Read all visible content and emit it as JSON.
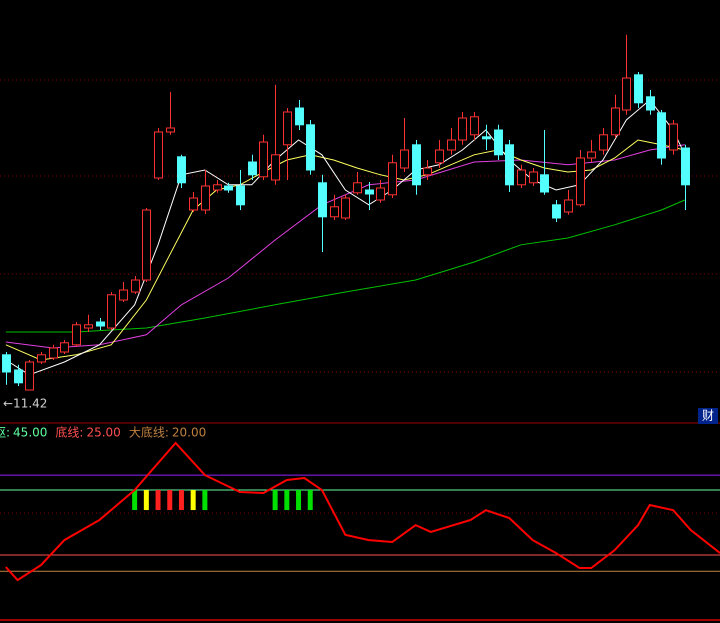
{
  "chart_data": [
    {
      "type": "candlestick",
      "xlim": [
        -0.5,
        61
      ],
      "ylim": [
        10.67,
        21.17
      ],
      "up_color": "#ff3232",
      "down_color": "#54ffff",
      "ohlc": [
        [
          12.3,
          12.37,
          11.55,
          11.87
        ],
        [
          11.92,
          12.05,
          11.52,
          11.6
        ],
        [
          11.42,
          12.17,
          11.42,
          12.12
        ],
        [
          12.12,
          12.37,
          12.07,
          12.3
        ],
        [
          12.22,
          12.55,
          12.17,
          12.47
        ],
        [
          12.37,
          12.67,
          12.32,
          12.6
        ],
        [
          12.55,
          13.12,
          12.5,
          13.05
        ],
        [
          12.97,
          13.3,
          12.87,
          13.05
        ],
        [
          13.12,
          13.22,
          12.92,
          13.02
        ],
        [
          12.97,
          13.87,
          12.92,
          13.8
        ],
        [
          13.67,
          14.12,
          13.62,
          13.92
        ],
        [
          13.87,
          14.27,
          13.82,
          14.17
        ],
        [
          14.17,
          15.97,
          14.12,
          15.92
        ],
        [
          16.72,
          17.97,
          16.67,
          17.87
        ],
        [
          17.87,
          18.87,
          17.8,
          17.97
        ],
        [
          17.25,
          17.3,
          16.47,
          16.6
        ],
        [
          15.92,
          16.37,
          15.87,
          16.22
        ],
        [
          15.92,
          16.92,
          15.82,
          16.52
        ],
        [
          16.42,
          16.67,
          16.35,
          16.55
        ],
        [
          16.52,
          16.6,
          16.35,
          16.42
        ],
        [
          16.52,
          16.92,
          15.92,
          16.05
        ],
        [
          17.12,
          17.3,
          16.67,
          16.8
        ],
        [
          16.75,
          17.8,
          16.67,
          17.62
        ],
        [
          16.67,
          19.05,
          16.55,
          17.3
        ],
        [
          17.55,
          18.47,
          16.67,
          18.37
        ],
        [
          18.47,
          18.67,
          17.92,
          18.05
        ],
        [
          18.05,
          18.17,
          16.8,
          16.92
        ],
        [
          16.6,
          16.8,
          14.87,
          15.75
        ],
        [
          15.75,
          16.3,
          15.67,
          16.0
        ],
        [
          15.72,
          16.3,
          15.67,
          16.22
        ],
        [
          16.35,
          16.87,
          16.3,
          16.6
        ],
        [
          16.42,
          16.62,
          15.92,
          16.32
        ],
        [
          16.17,
          16.67,
          16.1,
          16.47
        ],
        [
          16.3,
          17.3,
          16.22,
          17.1
        ],
        [
          16.97,
          18.22,
          16.87,
          17.42
        ],
        [
          17.55,
          17.67,
          16.3,
          16.55
        ],
        [
          16.8,
          17.17,
          16.67,
          16.97
        ],
        [
          17.1,
          17.67,
          16.97,
          17.42
        ],
        [
          17.42,
          17.97,
          17.3,
          17.67
        ],
        [
          17.67,
          18.37,
          17.55,
          18.22
        ],
        [
          17.8,
          18.37,
          17.67,
          18.25
        ],
        [
          17.75,
          18.05,
          17.42,
          17.7
        ],
        [
          17.92,
          18.05,
          17.17,
          17.3
        ],
        [
          17.55,
          17.67,
          16.37,
          16.55
        ],
        [
          16.55,
          17.05,
          16.47,
          16.92
        ],
        [
          16.6,
          16.97,
          16.52,
          16.87
        ],
        [
          16.8,
          17.92,
          16.3,
          16.37
        ],
        [
          16.05,
          16.17,
          15.62,
          15.72
        ],
        [
          15.87,
          16.42,
          15.8,
          16.17
        ],
        [
          16.05,
          17.42,
          16.0,
          17.22
        ],
        [
          17.22,
          17.67,
          17.12,
          17.37
        ],
        [
          17.42,
          17.97,
          17.3,
          17.8
        ],
        [
          17.8,
          18.8,
          17.72,
          18.47
        ],
        [
          18.42,
          20.3,
          18.3,
          19.22
        ],
        [
          19.3,
          19.37,
          18.47,
          18.6
        ],
        [
          18.75,
          18.92,
          18.3,
          18.42
        ],
        [
          18.35,
          18.42,
          17.05,
          17.22
        ],
        [
          17.42,
          18.17,
          17.3,
          18.07
        ],
        [
          17.47,
          17.55,
          15.92,
          16.55
        ]
      ],
      "moving_averages": [
        {
          "color": "#00c000",
          "x": [
            0,
            6,
            12,
            17,
            23,
            29,
            35,
            40,
            44,
            48,
            52,
            56,
            58
          ],
          "values": [
            12.87,
            12.87,
            12.97,
            13.22,
            13.55,
            13.87,
            14.17,
            14.62,
            15.05,
            15.22,
            15.55,
            15.92,
            16.17
          ]
        },
        {
          "color": "#e040e0",
          "x": [
            0,
            4,
            8,
            12,
            15,
            19,
            23,
            27,
            31,
            35,
            40,
            44,
            48,
            52,
            55,
            58
          ],
          "values": [
            12.62,
            12.47,
            12.55,
            12.8,
            13.55,
            14.22,
            15.17,
            16.05,
            16.55,
            16.67,
            17.12,
            17.17,
            17.05,
            17.17,
            17.42,
            17.55
          ]
        },
        {
          "color": "#ffff60",
          "x": [
            0,
            3,
            6,
            9,
            12,
            14,
            16,
            18,
            20,
            22,
            24,
            26,
            28,
            30,
            32,
            34,
            36,
            38,
            40,
            42,
            44,
            46,
            48,
            50,
            52,
            54,
            56,
            58
          ],
          "values": [
            12.55,
            12.17,
            12.3,
            12.55,
            13.67,
            14.8,
            15.92,
            16.42,
            16.55,
            16.87,
            17.17,
            17.3,
            17.17,
            16.97,
            16.8,
            16.67,
            16.8,
            17.05,
            17.3,
            17.42,
            17.17,
            16.97,
            16.87,
            16.92,
            17.22,
            17.67,
            17.55,
            17.42
          ]
        },
        {
          "color": "#ffffff",
          "x": [
            0,
            2,
            5,
            8,
            11,
            13,
            15,
            17,
            19,
            21,
            23,
            25,
            27,
            29,
            31,
            33,
            35,
            37,
            39,
            41,
            43,
            45,
            47,
            49,
            51,
            53,
            55,
            57,
            58
          ],
          "values": [
            12.17,
            11.8,
            12.12,
            12.55,
            13.55,
            15.05,
            16.8,
            16.92,
            16.55,
            16.55,
            17.17,
            17.67,
            17.3,
            16.42,
            16.05,
            16.42,
            16.92,
            17.05,
            17.42,
            17.92,
            17.17,
            16.67,
            16.42,
            16.55,
            17.17,
            18.17,
            18.67,
            17.92,
            17.3
          ]
        }
      ],
      "low_label": {
        "value": 11.42,
        "label": "←11.42"
      },
      "badge": "财"
    },
    {
      "type": "line",
      "xlim": [
        -0.5,
        61
      ],
      "ylim": [
        5,
        64.1
      ],
      "series": [
        {
          "color": "#ff0000",
          "x": [
            0,
            1,
            3,
            5,
            8,
            11,
            14.5,
            17,
            20,
            22,
            24,
            25.5,
            27,
            29,
            31,
            33,
            35,
            36.3,
            39.7,
            41,
            43,
            45,
            47,
            49,
            50,
            52,
            54,
            55,
            57,
            58.5,
            61
          ],
          "values": [
            21.3,
            17.3,
            21.9,
            29.6,
            35.8,
            45,
            59.5,
            49.6,
            44.4,
            44.1,
            48.1,
            48.7,
            45,
            31.2,
            29.6,
            29,
            34.2,
            32.1,
            35.8,
            38.8,
            36.4,
            29.6,
            25.6,
            21,
            21,
            26.5,
            34.2,
            40.4,
            38.8,
            32.7,
            25.6
          ]
        }
      ],
      "levels": [
        {
          "name": "枢:",
          "value": 45,
          "label": "45.00",
          "color": "#60ffa0"
        },
        {
          "name": "底线:",
          "value": 25,
          "label": "25.00",
          "color": "#ff5050"
        },
        {
          "name": "大底线:",
          "value": 20,
          "label": "20.00",
          "color": "#c08040"
        }
      ],
      "guide_lines": [
        {
          "value": 49.6,
          "color": "#9020ff"
        }
      ],
      "signals": [
        {
          "x": 11,
          "color": "#00e000"
        },
        {
          "x": 12,
          "color": "#ffff00"
        },
        {
          "x": 13,
          "color": "#ff2020"
        },
        {
          "x": 14,
          "color": "#ff2020"
        },
        {
          "x": 15,
          "color": "#ff2020"
        },
        {
          "x": 16,
          "color": "#ffff00"
        },
        {
          "x": 17,
          "color": "#00e000"
        },
        {
          "x": 23,
          "color": "#00e000"
        },
        {
          "x": 24,
          "color": "#00e000"
        },
        {
          "x": 25,
          "color": "#00e000"
        },
        {
          "x": 26,
          "color": "#00e000"
        }
      ]
    }
  ]
}
